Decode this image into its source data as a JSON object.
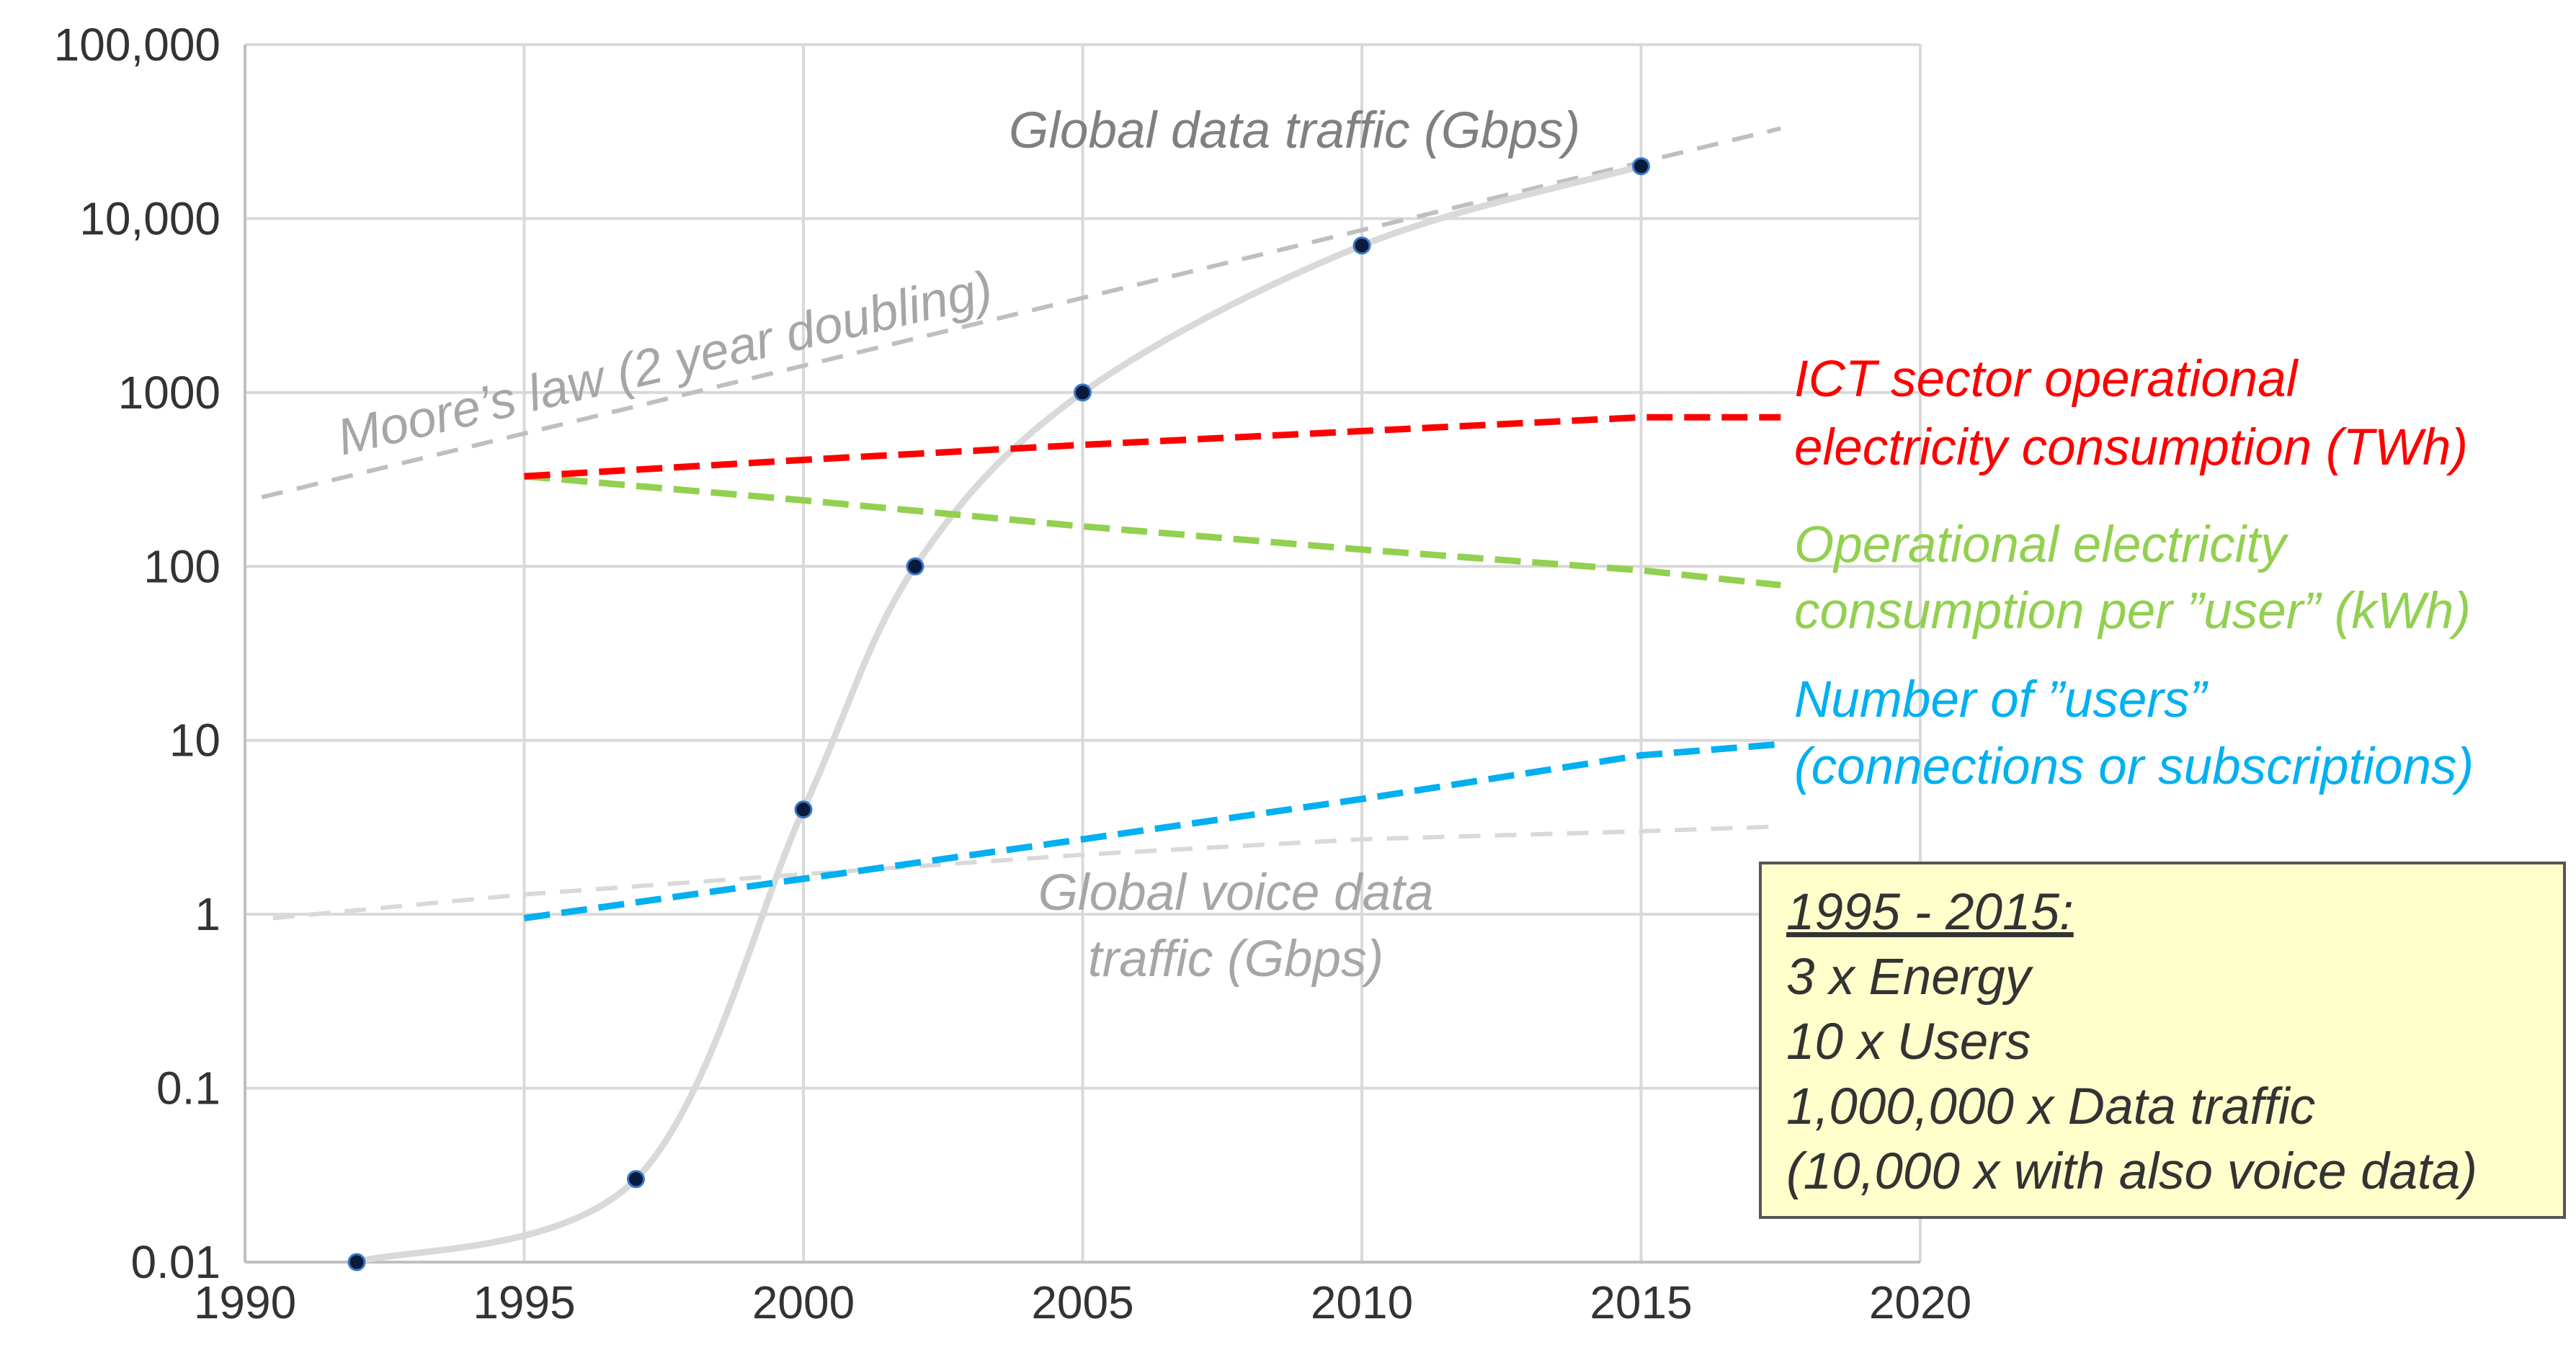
{
  "chart_data": {
    "type": "line",
    "yscale": "log",
    "xlim": [
      1990,
      2020
    ],
    "ylim": [
      0.01,
      100000
    ],
    "x_ticks": [
      "1990",
      "1995",
      "2000",
      "2005",
      "2010",
      "2015",
      "2020"
    ],
    "y_ticks": [
      "0.01",
      "0.1",
      "1",
      "10",
      "100",
      "1000",
      "10,000",
      "100,000"
    ],
    "grid": true,
    "series": [
      {
        "name": "Global data traffic (Gbps)",
        "style": "solid-with-markers",
        "color": "#d9d9d9",
        "marker_color": "#0a1a3a",
        "x": [
          1992,
          1997,
          2000,
          2002,
          2005,
          2010,
          2015
        ],
        "values": [
          0.01,
          0.03,
          4,
          100,
          1000,
          7000,
          20000
        ]
      },
      {
        "name": "Moore’s law (2 year doubling)",
        "style": "dashed",
        "color": "#bfbfbf",
        "x": [
          1990.3,
          2017.5
        ],
        "values": [
          250,
          33000
        ]
      },
      {
        "name": "ICT sector operational electricity consumption (TWh)",
        "style": "dashed",
        "color": "#ff0000",
        "x": [
          1995,
          2000,
          2005,
          2010,
          2015,
          2017.5
        ],
        "values": [
          330,
          410,
          500,
          600,
          720,
          720
        ]
      },
      {
        "name": "Operational electricity consumption per ”user” (kWh)",
        "style": "dashed",
        "color": "#92d050",
        "x": [
          1995,
          2000,
          2005,
          2010,
          2015,
          2017.5
        ],
        "values": [
          330,
          240,
          170,
          125,
          95,
          78
        ]
      },
      {
        "name": "Number of ”users” (connections or subscriptions)",
        "style": "dashed",
        "color": "#00b0f0",
        "x": [
          1995,
          2000,
          2005,
          2010,
          2015,
          2017.5
        ],
        "values": [
          0.95,
          1.6,
          2.7,
          4.6,
          8.2,
          9.5
        ]
      },
      {
        "name": "Global voice data traffic (Gbps)",
        "style": "dashed",
        "color": "#d9d9d9",
        "x": [
          1990.5,
          1995,
          2000,
          2005,
          2010,
          2015,
          2017.5
        ],
        "values": [
          0.95,
          1.3,
          1.7,
          2.2,
          2.7,
          3.0,
          3.2
        ]
      }
    ],
    "annotations": [
      {
        "text": "Global data traffic (Gbps)",
        "color": "#808080"
      },
      {
        "text": "Moore’s law (2 year doubling)",
        "color": "#a6a6a6"
      },
      {
        "text": "ICT sector operational",
        "color": "#ff0000"
      },
      {
        "text": "electricity consumption (TWh)",
        "color": "#ff0000"
      },
      {
        "text": "Operational electricity",
        "color": "#92d050"
      },
      {
        "text": "consumption per ”user” (kWh)",
        "color": "#92d050"
      },
      {
        "text": "Number of ”users”",
        "color": "#00b0f0"
      },
      {
        "text": "(connections or subscriptions)",
        "color": "#00b0f0"
      },
      {
        "text": "Global voice data",
        "color": "#a6a6a6"
      },
      {
        "text": "traffic (Gbps)",
        "color": "#a6a6a6"
      }
    ]
  },
  "summary": {
    "title": "1995 - 2015:",
    "lines": [
      "3 x Energy",
      "10 x Users",
      "1,000,000 x Data traffic",
      "(10,000 x with also voice data)"
    ]
  }
}
